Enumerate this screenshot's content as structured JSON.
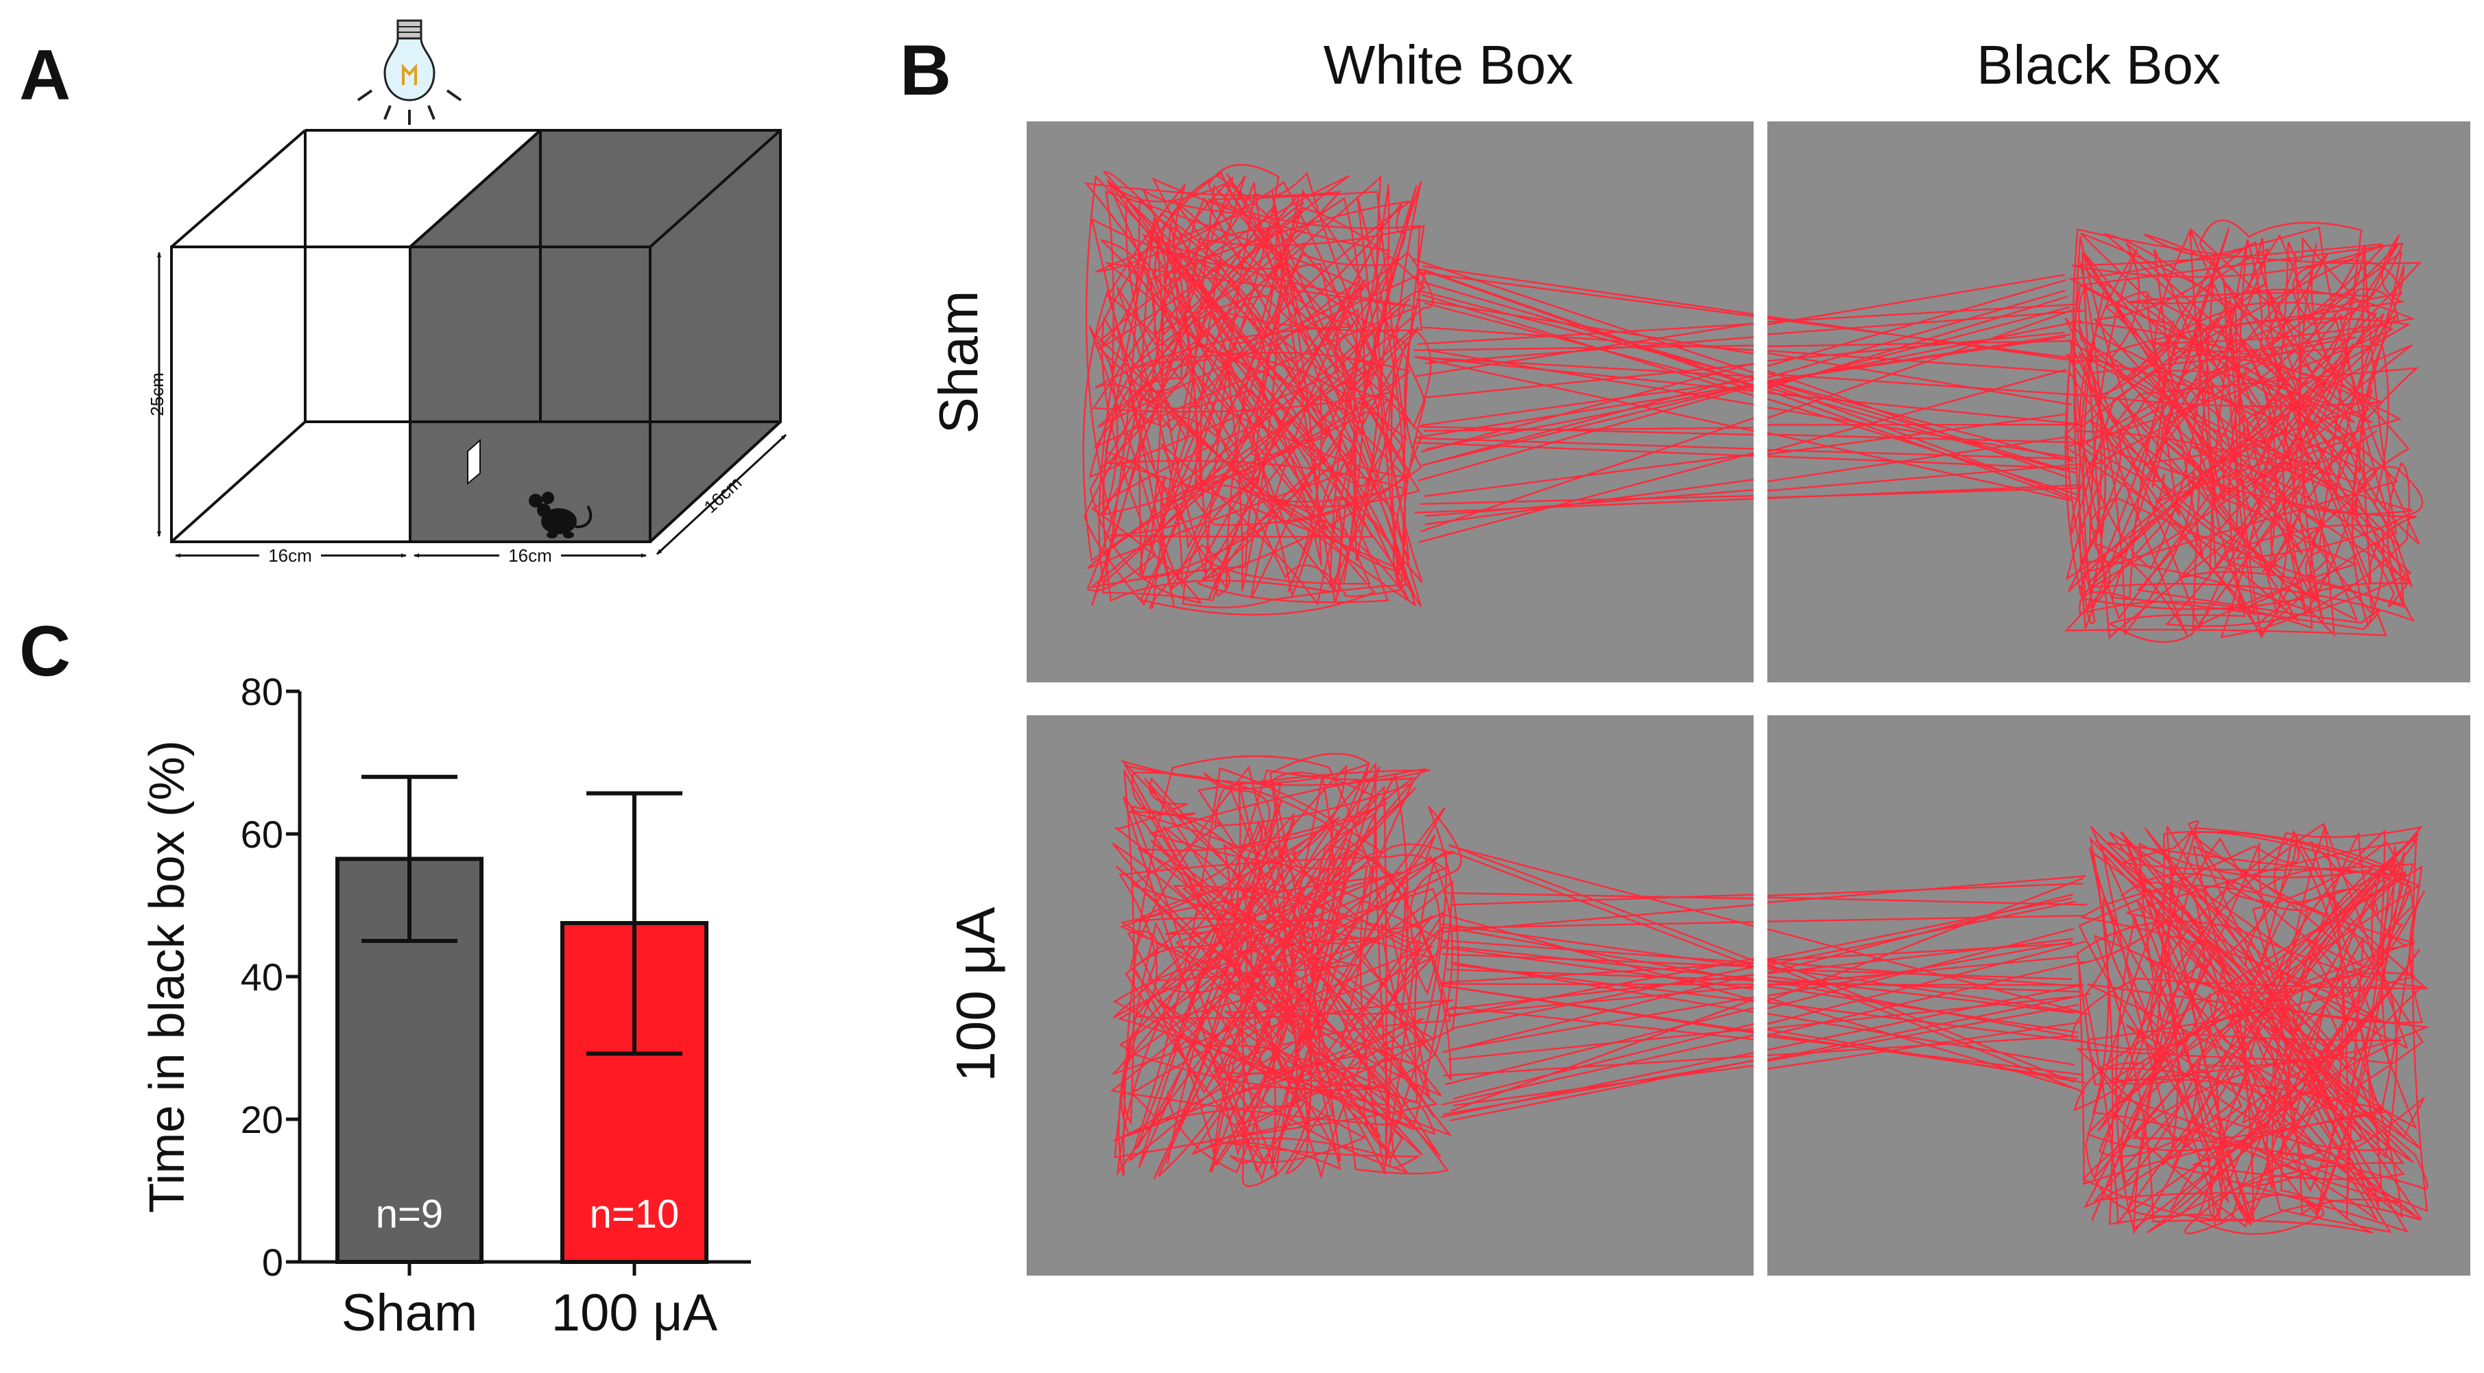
{
  "figure": {
    "panels": {
      "a": {
        "letter": "A",
        "dimensions": {
          "height": "25cm",
          "width_left": "16cm",
          "width_right": "16cm",
          "depth": "16cm"
        },
        "icons": [
          "light-bulb-icon",
          "mouse-icon"
        ],
        "colors": {
          "dark_box": "#666666",
          "light_box": "#ffffff"
        }
      },
      "b": {
        "letter": "B",
        "columns": [
          "White Box",
          "Black Box"
        ],
        "rows": [
          "Sham",
          "100 μA"
        ],
        "colors": {
          "arena": "#8c8c8c",
          "track": "#ff2a3c"
        }
      },
      "c": {
        "letter": "C"
      }
    }
  },
  "chart_data": {
    "type": "bar",
    "categories": [
      "Sham",
      "100 μA"
    ],
    "values": [
      56.5,
      47.5
    ],
    "error_upper": [
      68,
      65.7
    ],
    "error_lower": [
      45,
      29.2
    ],
    "n_labels": [
      "n=9",
      "n=10"
    ],
    "colors": [
      "#616161",
      "#ff1a24"
    ],
    "ylabel": "Time in black box (%)",
    "xlabel": "",
    "ylim": [
      0,
      80
    ],
    "yticks": [
      0,
      20,
      40,
      60,
      80
    ],
    "grid": false,
    "legend": "none"
  }
}
